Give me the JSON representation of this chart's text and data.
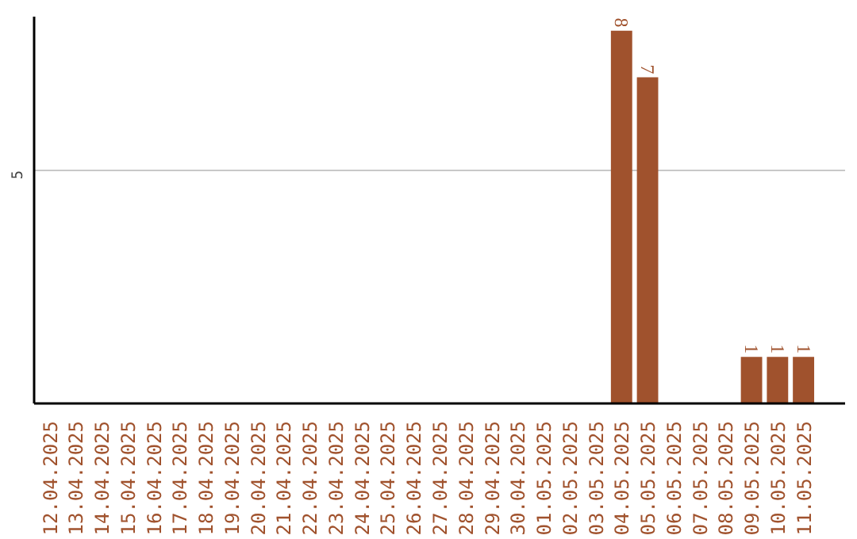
{
  "chart_data": {
    "type": "bar",
    "categories": [
      "12.04.2025",
      "13.04.2025",
      "14.04.2025",
      "15.04.2025",
      "16.04.2025",
      "17.04.2025",
      "18.04.2025",
      "19.04.2025",
      "20.04.2025",
      "21.04.2025",
      "22.04.2025",
      "23.04.2025",
      "24.04.2025",
      "25.04.2025",
      "26.04.2025",
      "27.04.2025",
      "28.04.2025",
      "29.04.2025",
      "30.04.2025",
      "01.05.2025",
      "02.05.2025",
      "03.05.2025",
      "04.05.2025",
      "05.05.2025",
      "06.05.2025",
      "07.05.2025",
      "08.05.2025",
      "09.05.2025",
      "10.05.2025",
      "11.05.2025"
    ],
    "values": [
      null,
      null,
      null,
      null,
      null,
      null,
      null,
      null,
      null,
      null,
      null,
      null,
      null,
      null,
      null,
      null,
      null,
      null,
      null,
      null,
      null,
      null,
      8,
      7,
      null,
      null,
      null,
      1,
      1,
      1
    ],
    "data_labels": true,
    "color": "#a0522d",
    "ylim": [
      0,
      8.3
    ],
    "yticks": [
      {
        "value": 0,
        "label": null
      },
      5
    ],
    "grid": "y"
  }
}
